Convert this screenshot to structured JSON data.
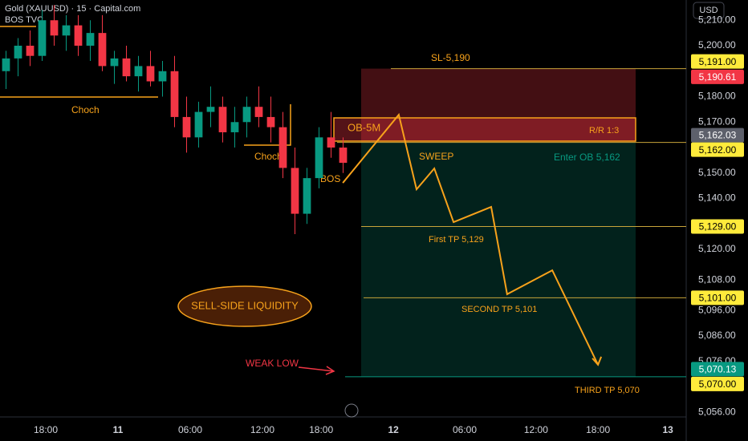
{
  "chart_data": {
    "type": "candlestick",
    "title": "Gold (XAUUSD) · 15 · Capital.com",
    "subtitle": "BOS TVC",
    "currency": "USD",
    "up_color": "#089981",
    "down_color": "#f23645",
    "xlim": [
      0,
      228
    ],
    "ylim": [
      5054.2,
      5217.95
    ],
    "x": [
      2,
      6,
      10,
      14,
      18,
      22,
      26,
      30,
      34,
      38,
      42,
      46,
      50,
      54,
      58,
      62,
      66,
      70,
      74,
      78,
      82,
      86,
      90,
      94,
      98,
      102,
      106,
      110,
      114
    ],
    "open": [
      5190,
      5195,
      5200,
      5196,
      5210,
      5204,
      5208,
      5200,
      5205,
      5192,
      5195,
      5188,
      5192,
      5186,
      5190,
      5172,
      5164,
      5174,
      5176,
      5166,
      5170,
      5176,
      5172,
      5168,
      5152,
      5134,
      5148,
      5164,
      5160
    ],
    "high": [
      5198,
      5203,
      5206,
      5214,
      5216,
      5212,
      5212,
      5210,
      5212,
      5198,
      5200,
      5196,
      5198,
      5194,
      5196,
      5180,
      5178,
      5184,
      5180,
      5176,
      5180,
      5184,
      5180,
      5174,
      5160,
      5152,
      5168,
      5174,
      5164
    ],
    "low": [
      5183,
      5188,
      5192,
      5194,
      5200,
      5198,
      5196,
      5194,
      5190,
      5185,
      5186,
      5182,
      5184,
      5180,
      5168,
      5158,
      5160,
      5168,
      5162,
      5160,
      5164,
      5168,
      5162,
      5148,
      5126,
      5130,
      5144,
      5156,
      5150
    ],
    "close": [
      5195,
      5200,
      5196,
      5210,
      5204,
      5208,
      5200,
      5205,
      5192,
      5195,
      5188,
      5192,
      5186,
      5190,
      5172,
      5164,
      5174,
      5176,
      5166,
      5170,
      5176,
      5172,
      5168,
      5152,
      5134,
      5148,
      5164,
      5160,
      5154
    ],
    "xticks": [
      {
        "value": 15.2,
        "label": "18:00"
      },
      {
        "value": 39.2,
        "label": "11"
      },
      {
        "value": 63.2,
        "label": "06:00"
      },
      {
        "value": 87.2,
        "label": "12:00"
      },
      {
        "value": 106.7,
        "label": "18:00"
      },
      {
        "value": 130.7,
        "label": "12"
      },
      {
        "value": 154.4,
        "label": "06:00"
      },
      {
        "value": 178.1,
        "label": "12:00"
      },
      {
        "value": 198.7,
        "label": "18:00"
      },
      {
        "value": 221.9,
        "label": "13"
      }
    ],
    "yticks": [
      {
        "value": 5210,
        "label": "5,210.00"
      },
      {
        "value": 5200,
        "label": "5,200.00"
      },
      {
        "value": 5180,
        "label": "5,180.00"
      },
      {
        "value": 5170,
        "label": "5,170.00"
      },
      {
        "value": 5150,
        "label": "5,150.00"
      },
      {
        "value": 5140,
        "label": "5,140.00"
      },
      {
        "value": 5120,
        "label": "5,120.00"
      },
      {
        "value": 5108,
        "label": "5,108.00"
      },
      {
        "value": 5096,
        "label": "5,096.00"
      },
      {
        "value": 5086,
        "label": "5,086.00"
      },
      {
        "value": 5076,
        "label": "5,076.00"
      },
      {
        "value": 5056,
        "label": "5,056.00"
      }
    ],
    "price_labels": [
      {
        "value": 5191,
        "label": "5,191.00",
        "color": "#ffeb3b"
      },
      {
        "value": 5190.61,
        "label": "5,190.61",
        "color": "#f23645"
      },
      {
        "value": 5162.03,
        "label": "5,162.03",
        "color": "#5d606b"
      },
      {
        "value": 5162,
        "label": "5,162.00",
        "color": "#ffeb3b"
      },
      {
        "value": 5129,
        "label": "5,129.00",
        "color": "#ffeb3b"
      },
      {
        "value": 5101,
        "label": "5,101.00",
        "color": "#ffeb3b"
      },
      {
        "value": 5070.13,
        "label": "5,070.13",
        "color": "#089981"
      },
      {
        "value": 5070,
        "label": "5,070.00",
        "color": "#ffeb3b"
      }
    ],
    "projection": {
      "x": [
        113.9,
        132.5,
        138.4,
        144.3,
        150.7,
        163.2,
        168.5,
        183.5,
        198.7
      ],
      "values": [
        5146.1,
        5172.9,
        5143.6,
        5151.8,
        5130.7,
        5136.7,
        5102.4,
        5111.8,
        5074.7
      ]
    },
    "annotations": {
      "sl": "SL-5,190",
      "choch_1": "Choch",
      "choch_2": "Choch",
      "bos": "BOS",
      "ob": "OB-5M",
      "rr": "R/R 1:3",
      "sweep": "SWEEP",
      "enter": "Enter OB 5,162",
      "tp1": "First TP 5,129",
      "tp2": "SECOND TP 5,101",
      "tp3": "THIRD TP 5,070",
      "liquidity": "SELL-SIDE LIQUIDITY",
      "weak_low": "WEAK LOW"
    }
  }
}
